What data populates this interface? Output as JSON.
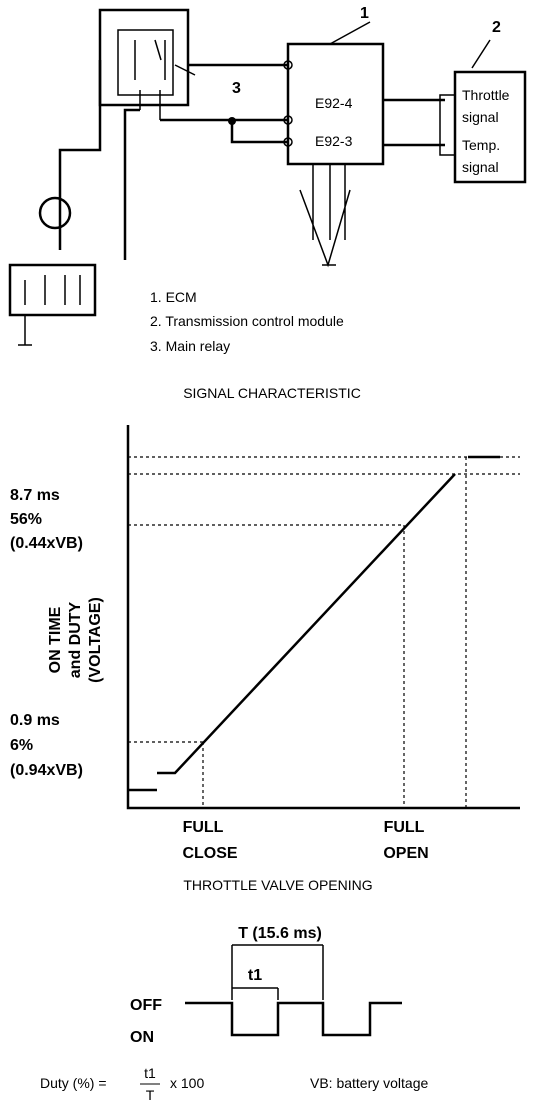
{
  "wiring": {
    "callouts": [
      "1",
      "2",
      "3"
    ],
    "ecm_pins": [
      "E92-4",
      "E92-3"
    ],
    "tcm_labels": [
      "Throttle",
      "signal",
      "Temp.",
      "signal"
    ]
  },
  "legend": [
    "1. ECM",
    "2. Transmission control module",
    "3. Main relay"
  ],
  "signal_chart": {
    "title": "SIGNAL CHARACTERISTIC",
    "y_axis_label": [
      "ON TIME",
      "and DUTY",
      "(VOLTAGE)"
    ],
    "upper_level": [
      "8.7 ms",
      "56%",
      "(0.44xVB)"
    ],
    "lower_level": [
      "0.9 ms",
      "6%",
      "(0.94xVB)"
    ],
    "x_labels": [
      [
        "FULL",
        "CLOSE"
      ],
      [
        "FULL",
        "OPEN"
      ]
    ],
    "x_axis_title": "THROTTLE VALVE OPENING"
  },
  "pulse": {
    "period": "T (15.6 ms)",
    "on_width": "t1",
    "off": "OFF",
    "on": "ON"
  },
  "footer": {
    "duty_lhs": "Duty (%) =",
    "numerator": "t1",
    "denominator": "T",
    "multiplier": "x 100",
    "vb_note": "VB: battery voltage"
  }
}
